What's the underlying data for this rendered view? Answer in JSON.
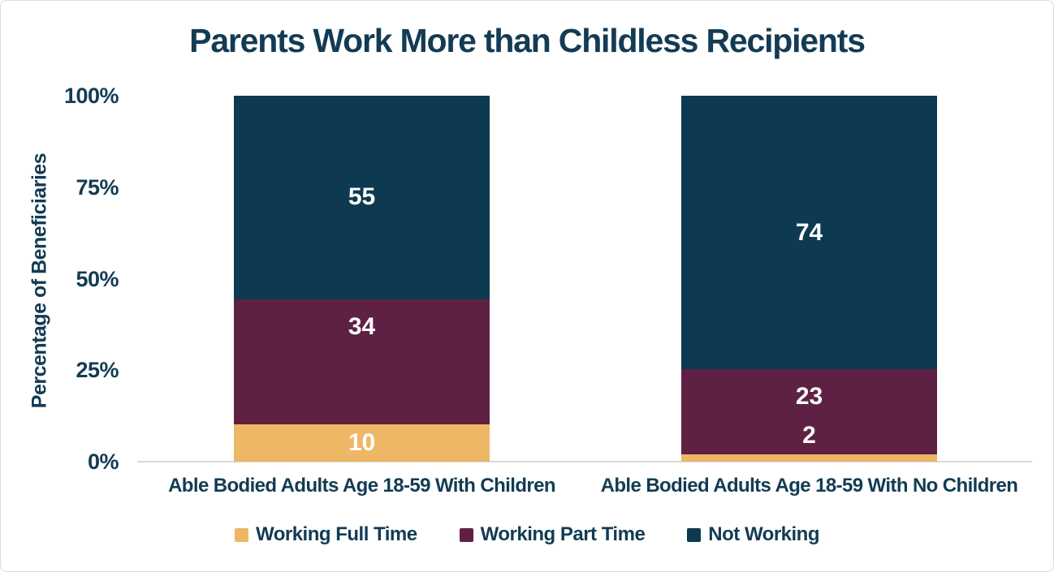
{
  "chart_data": {
    "type": "bar",
    "stacked": true,
    "title": "Parents Work More than Childless Recipients",
    "xlabel": "",
    "ylabel": "Percentage of Beneficiaries",
    "categories": [
      "Able Bodied Adults Age 18-59 With Children",
      "Able Bodied Adults Age 18-59 With No Children"
    ],
    "series": [
      {
        "name": "Working Full Time",
        "values": [
          10,
          2
        ],
        "color": "#edb765"
      },
      {
        "name": "Working Part Time",
        "values": [
          34,
          23
        ],
        "color": "#5e2144"
      },
      {
        "name": "Not Working",
        "values": [
          55,
          74
        ],
        "color": "#0d3a51"
      }
    ],
    "value_labels_shown": true,
    "yticks": [
      "0%",
      "25%",
      "50%",
      "75%",
      "100%"
    ],
    "ylim": [
      0,
      100
    ],
    "grid": false,
    "legend_position": "bottom"
  },
  "colors": {
    "text": "#133b54",
    "axis_line": "#d9d9d9",
    "value_label_text": "#ffffff",
    "background": "#ffffff"
  }
}
